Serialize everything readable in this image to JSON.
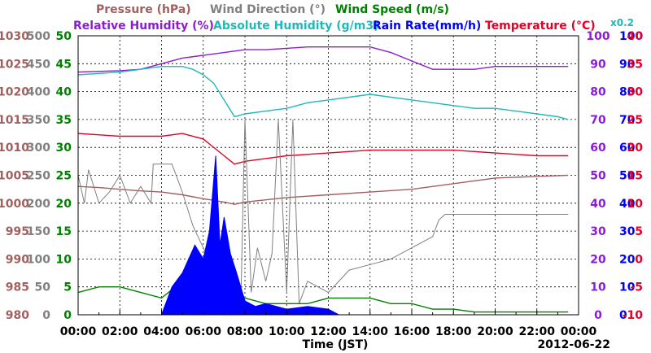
{
  "chart_data": {
    "type": "line",
    "legend": [
      {
        "name": "Pressure (hPa)",
        "color": "#a0605f"
      },
      {
        "name": "Wind Direction (°)",
        "color": "#808080"
      },
      {
        "name": "Wind Speed (m/s)",
        "color": "#008000"
      },
      {
        "name": "Relative Humidity (%)",
        "color": "#8c1bd6"
      },
      {
        "name": "Absolute Humidity (g/m3)",
        "color": "#20b8b8"
      },
      {
        "name": "Rain Rate(mm/h)",
        "color": "#0000ff"
      },
      {
        "name": "Temperature (°C)",
        "color": "#e60026"
      },
      {
        "name": "x0.2",
        "color": "#20b8b8"
      }
    ],
    "xlabel": "Time (JST)",
    "date": "2012-06-22",
    "x_ticks": [
      "00:00",
      "02:00",
      "04:00",
      "06:00",
      "08:00",
      "10:00",
      "12:00",
      "14:00",
      "16:00",
      "18:00",
      "20:00",
      "22:00",
      "00:00"
    ],
    "axes": {
      "pressure": {
        "color": "#a0605f",
        "ticks": [
          "1030",
          "1025",
          "1020",
          "1015",
          "1010",
          "1005",
          "1000",
          "995",
          "990",
          "985",
          "980"
        ]
      },
      "wind_direction": {
        "color": "#808080",
        "ticks": [
          "500",
          "450",
          "400",
          "350",
          "300",
          "250",
          "200",
          "150",
          "100",
          "50",
          "0"
        ]
      },
      "wind_speed": {
        "color": "#008000",
        "ticks": [
          "50",
          "45",
          "40",
          "35",
          "30",
          "25",
          "20",
          "15",
          "10",
          "5",
          "0"
        ]
      },
      "relative_humidity": {
        "color": "#8c1bd6",
        "ticks": [
          "100",
          "90",
          "80",
          "70",
          "60",
          "50",
          "40",
          "30",
          "20",
          "10",
          "0"
        ]
      },
      "rain_rate": {
        "color": "#0000ff",
        "ticks": [
          "100",
          "90",
          "80",
          "70",
          "60",
          "50",
          "40",
          "30",
          "20",
          "10",
          "0"
        ]
      },
      "temperature": {
        "color": "#e60026",
        "ticks": [
          "40",
          "35",
          "30",
          "25",
          "20",
          "15",
          "10",
          "5",
          "0",
          "-5",
          "-10"
        ]
      }
    },
    "grid": true,
    "series": [
      {
        "name": "Relative Humidity (%)",
        "axis": "relative_humidity",
        "color": "#8c1bd6",
        "x": [
          0,
          2,
          3,
          4,
          5,
          6,
          7,
          8,
          9,
          10,
          11,
          12,
          13,
          14,
          15,
          16,
          17,
          18,
          19,
          20,
          21,
          22,
          23,
          23.5
        ],
        "y": [
          87,
          87.5,
          88,
          90,
          92,
          93,
          94,
          95,
          95,
          95.5,
          96,
          96,
          96,
          96,
          94,
          91,
          88,
          88,
          88,
          89,
          89,
          89,
          89,
          89
        ]
      },
      {
        "name": "Absolute Humidity (g/m3)",
        "axis": "relative_humidity",
        "color": "#20b8b8",
        "x": [
          0,
          1,
          2,
          3,
          4,
          5,
          5.5,
          6,
          6.5,
          7,
          7.5,
          8,
          9,
          10,
          11,
          12,
          13,
          14,
          15,
          16,
          17,
          18,
          19,
          20,
          21,
          22,
          23,
          23.5
        ],
        "y": [
          86,
          86.5,
          87,
          88,
          89,
          89,
          88,
          86,
          83,
          77,
          71,
          72,
          73,
          74,
          76,
          77,
          78,
          79,
          78,
          77,
          76,
          75,
          74,
          74,
          73,
          72,
          71,
          70
        ]
      },
      {
        "name": "Temperature (°C)",
        "axis": "temperature",
        "color": "#e60026",
        "x": [
          0,
          2,
          4,
          5,
          6,
          7,
          7.5,
          8,
          9,
          10,
          12,
          14,
          16,
          18,
          20,
          22,
          23.5
        ],
        "y": [
          22.5,
          22,
          22,
          22.5,
          21.5,
          18.5,
          17,
          17.5,
          18,
          18.5,
          19,
          19.5,
          19.5,
          19.5,
          19,
          18.5,
          18.5
        ]
      },
      {
        "name": "Pressure (hPa)",
        "axis": "pressure",
        "color": "#a0605f",
        "x": [
          0,
          1,
          2,
          3,
          4,
          5,
          6,
          7,
          7.5,
          8,
          9,
          10,
          12,
          14,
          16,
          18,
          20,
          22,
          23.5
        ],
        "y": [
          1003,
          1002.8,
          1002.5,
          1002.2,
          1002,
          1001.5,
          1000.8,
          1000.2,
          999.8,
          1000.2,
          1000.6,
          1001,
          1001.5,
          1002,
          1002.5,
          1003.5,
          1004.5,
          1004.8,
          1005
        ]
      },
      {
        "name": "Wind Direction (°)",
        "axis": "wind_direction",
        "color": "#808080",
        "x": [
          0,
          0.3,
          0.5,
          1,
          1.5,
          2,
          2.5,
          3,
          3.5,
          3.6,
          4,
          4.5,
          5,
          5.5,
          6,
          6.5,
          7,
          7.5,
          7.8,
          8,
          8.3,
          8.6,
          9,
          9.3,
          9.6,
          10,
          10.3,
          10.6,
          11,
          11.5,
          12,
          13,
          14,
          15,
          16,
          16.5,
          17,
          17.3,
          17.6,
          18,
          19,
          20,
          21,
          22,
          23,
          23.5
        ],
        "y": [
          250,
          200,
          260,
          200,
          220,
          250,
          200,
          230,
          200,
          270,
          270,
          270,
          220,
          160,
          120,
          80,
          110,
          60,
          20,
          350,
          40,
          120,
          60,
          110,
          350,
          40,
          350,
          20,
          60,
          50,
          40,
          80,
          90,
          100,
          120,
          130,
          140,
          170,
          180,
          180,
          180,
          180,
          180,
          180,
          180,
          180
        ]
      },
      {
        "name": "Wind Speed (m/s)",
        "axis": "wind_speed",
        "color": "#008000",
        "x": [
          0,
          1,
          2,
          3,
          4,
          5,
          6,
          7,
          8,
          9,
          10,
          11,
          12,
          13,
          14,
          15,
          16,
          17,
          18,
          19,
          20,
          21,
          22,
          23,
          23.5
        ],
        "y": [
          4,
          5,
          5,
          4,
          3,
          6,
          5,
          4,
          3,
          2,
          2,
          2,
          3,
          3,
          3,
          2,
          2,
          1,
          1,
          0.5,
          0.5,
          0.5,
          0.5,
          0.5,
          0.5
        ]
      },
      {
        "name": "Rain Rate(mm/h)",
        "axis": "rain_rate",
        "color": "#0000ff",
        "x": [
          4,
          4.5,
          5,
          5.3,
          5.6,
          6,
          6.3,
          6.6,
          6.8,
          7,
          7.3,
          7.6,
          8,
          8.5,
          9,
          10,
          11,
          12,
          12.5
        ],
        "y": [
          0,
          10,
          15,
          20,
          25,
          20,
          30,
          57,
          25,
          35,
          22,
          15,
          5,
          3,
          4,
          2,
          3,
          2,
          0
        ]
      }
    ]
  }
}
